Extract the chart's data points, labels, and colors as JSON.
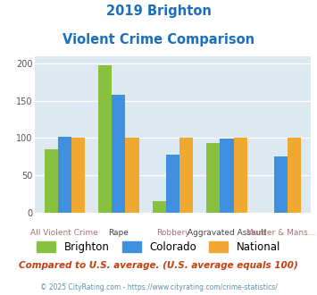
{
  "title_line1": "2019 Brighton",
  "title_line2": "Violent Crime Comparison",
  "title_color": "#1c6fba",
  "categories": [
    "All Violent Crime",
    "Rape",
    "Robbery",
    "Aggravated Assault",
    "Murder & Mans..."
  ],
  "cat_line1": [
    "",
    "Rape",
    "",
    "Aggravated Assault",
    ""
  ],
  "cat_line2": [
    "All Violent Crime",
    "",
    "Robbery",
    "",
    "Murder & Mans..."
  ],
  "brighton": [
    85,
    198,
    15,
    93,
    0
  ],
  "colorado": [
    101,
    158,
    78,
    99,
    75
  ],
  "national": [
    100,
    100,
    100,
    100,
    100
  ],
  "bar_colors": {
    "brighton": "#88c040",
    "colorado": "#4090e0",
    "national": "#f0a830"
  },
  "ylim": [
    0,
    210
  ],
  "yticks": [
    0,
    50,
    100,
    150,
    200
  ],
  "plot_bg": "#dde9f0",
  "legend_labels": [
    "Brighton",
    "Colorado",
    "National"
  ],
  "note_text": "Compared to U.S. average. (U.S. average equals 100)",
  "note_color": "#c04010",
  "footer_text": "© 2025 CityRating.com - https://www.cityrating.com/crime-statistics/",
  "footer_color": "#6090b0",
  "bar_width": 0.25
}
